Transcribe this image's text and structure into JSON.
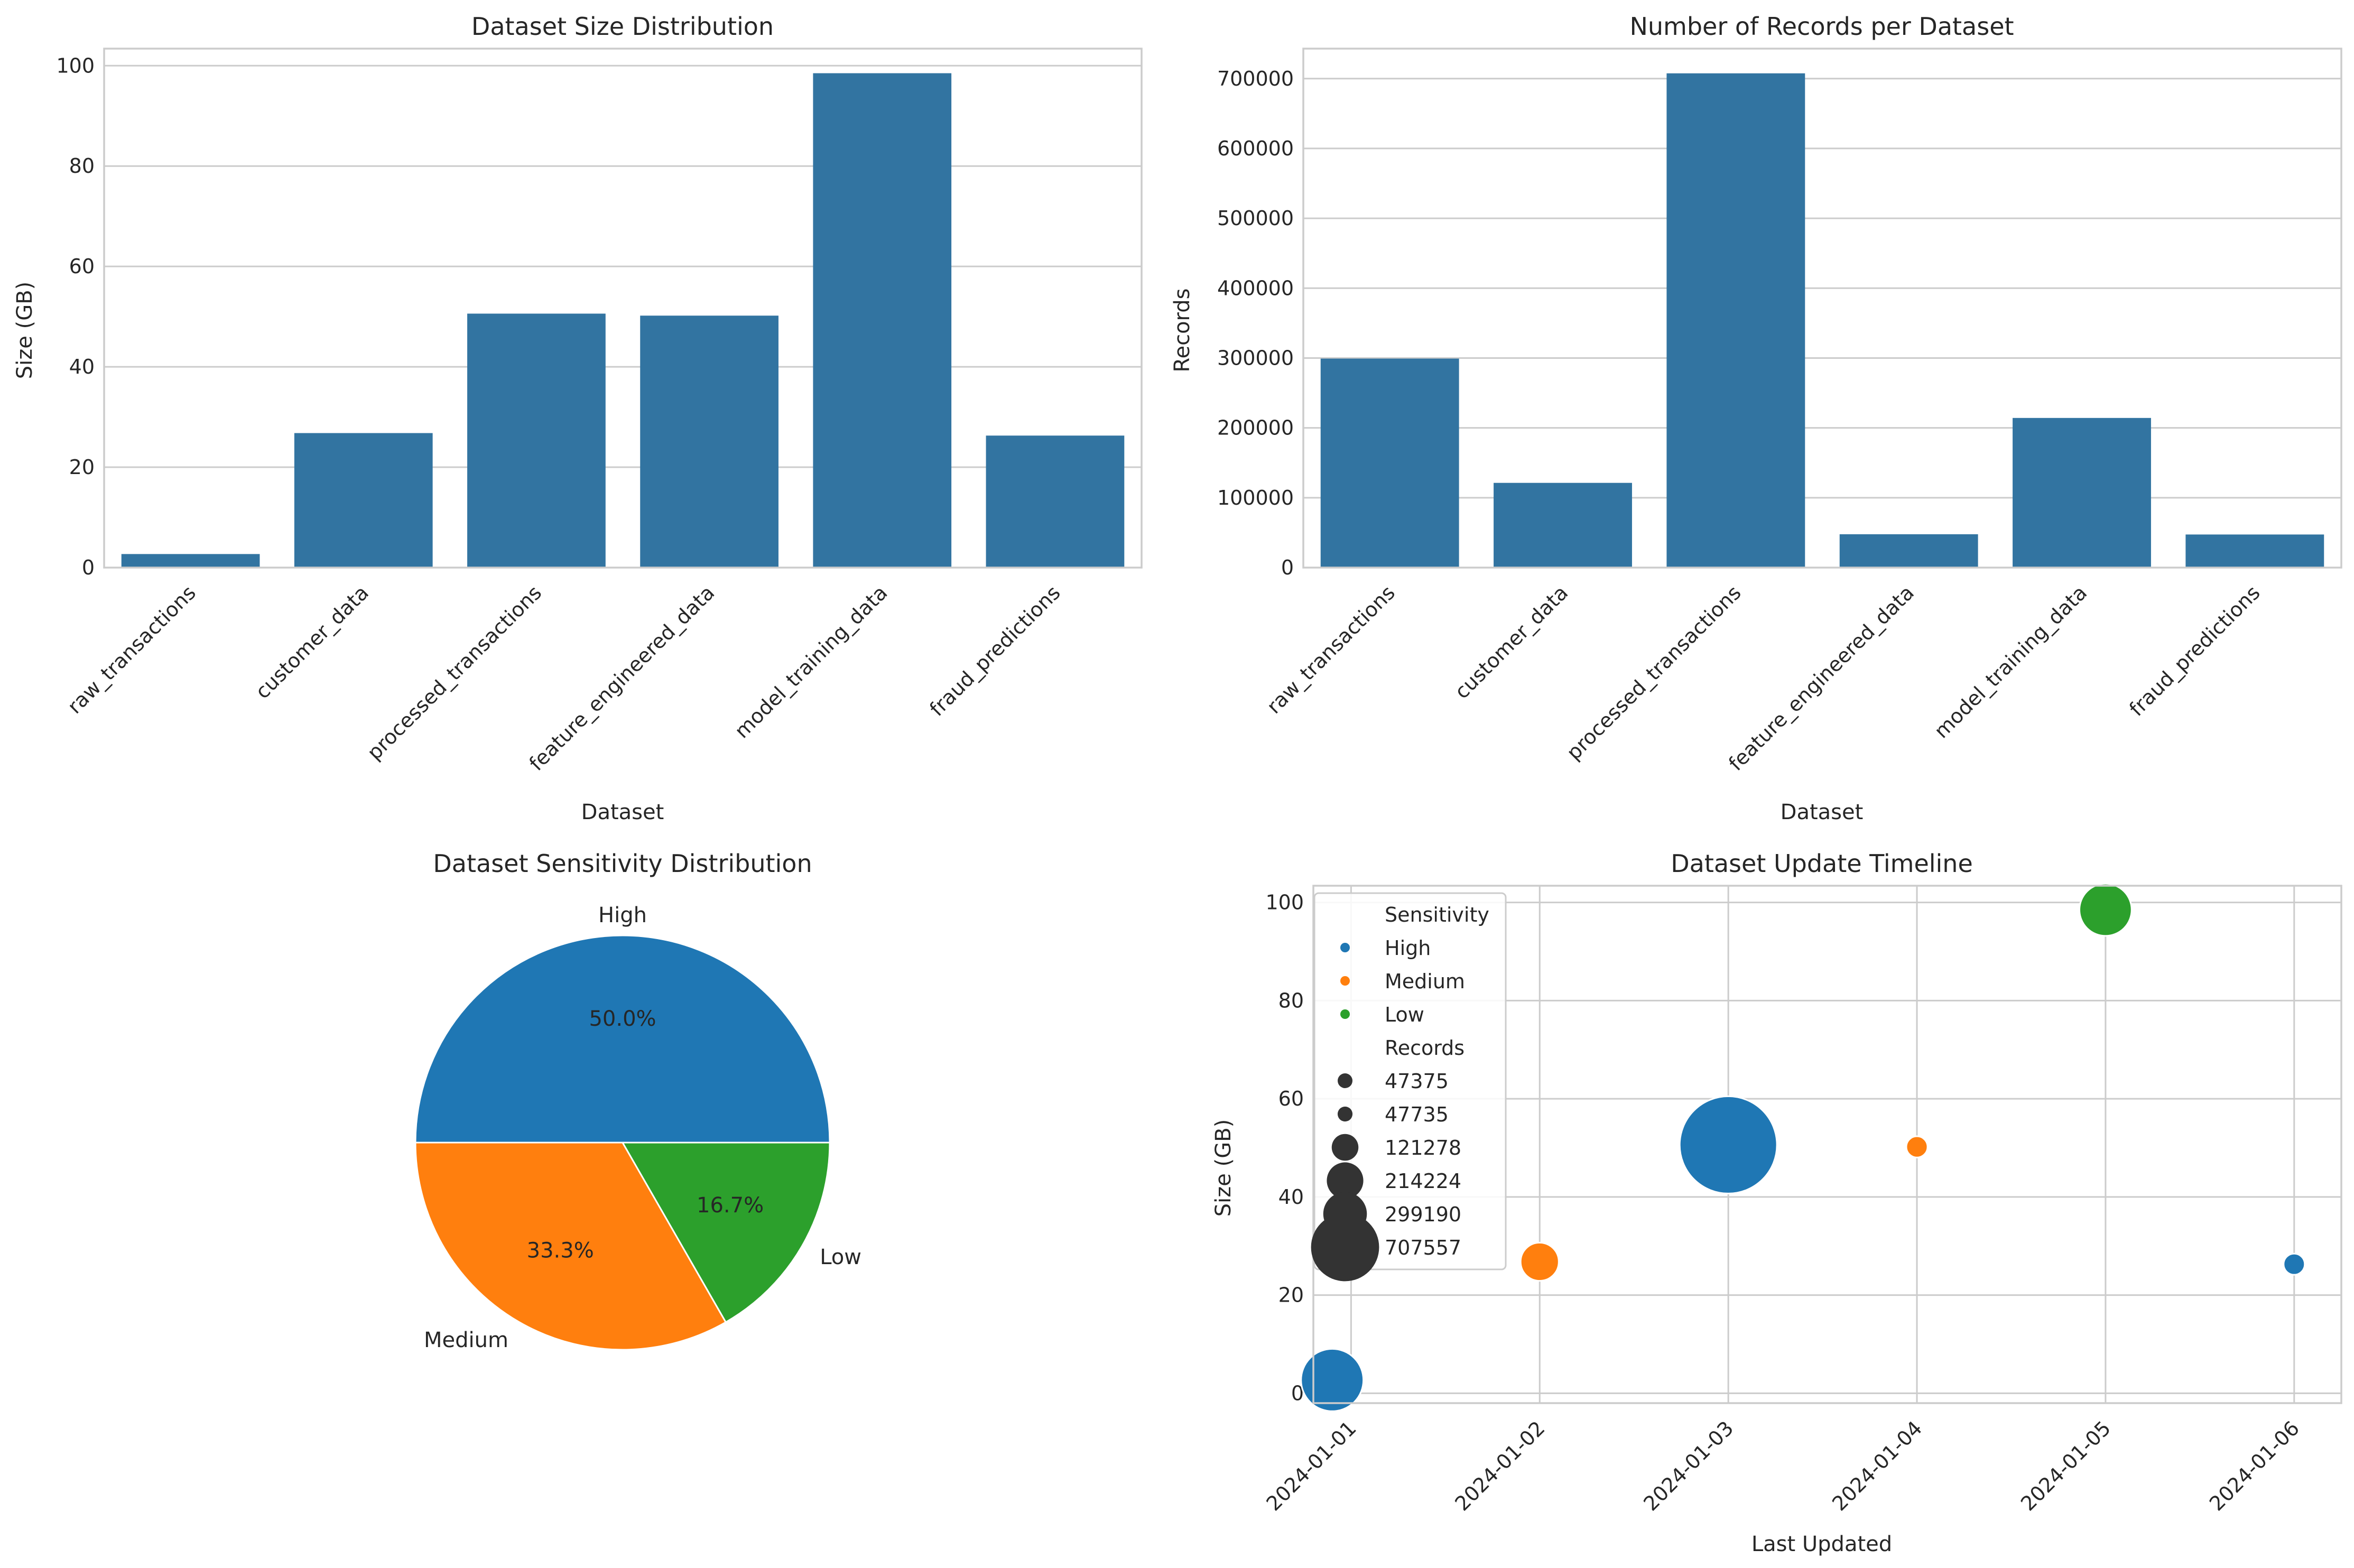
{
  "chart_data": [
    {
      "type": "bar",
      "title": "Dataset Size Distribution",
      "xlabel": "Dataset",
      "ylabel": "Size (GB)",
      "categories": [
        "raw_transactions",
        "customer_data",
        "processed_transactions",
        "feature_engineered_data",
        "model_training_data",
        "fraud_predictions"
      ],
      "values": [
        2.7,
        26.8,
        50.6,
        50.2,
        98.5,
        26.3
      ],
      "ylim": [
        0,
        103.4
      ],
      "yticks": [
        0,
        20,
        40,
        60,
        80,
        100
      ],
      "color": "#3274a1"
    },
    {
      "type": "bar",
      "title": "Number of Records per Dataset",
      "xlabel": "Dataset",
      "ylabel": "Records",
      "categories": [
        "raw_transactions",
        "customer_data",
        "processed_transactions",
        "feature_engineered_data",
        "model_training_data",
        "fraud_predictions"
      ],
      "values": [
        299190,
        121278,
        707557,
        47735,
        214224,
        47375
      ],
      "ylim": [
        0,
        742935
      ],
      "yticks": [
        0,
        100000,
        200000,
        300000,
        400000,
        500000,
        600000,
        700000
      ],
      "color": "#3274a1"
    },
    {
      "type": "pie",
      "title": "Dataset Sensitivity Distribution",
      "labels": [
        "High",
        "Medium",
        "Low"
      ],
      "values": [
        50.0,
        33.3,
        16.7
      ],
      "pct_labels": [
        "50.0%",
        "33.3%",
        "16.7%"
      ],
      "colors": [
        "#1f77b4",
        "#ff7f0e",
        "#2ca02c"
      ]
    },
    {
      "type": "scatter",
      "title": "Dataset Update Timeline",
      "xlabel": "Last Updated",
      "ylabel": "Size (GB)",
      "x": [
        "2024-01-01",
        "2024-01-02",
        "2024-01-03",
        "2024-01-04",
        "2024-01-05",
        "2024-01-06"
      ],
      "x_index": [
        -0.1,
        1.0,
        2.0,
        3.0,
        4.0,
        5.0
      ],
      "xticks": [
        "2024-01-01",
        "2024-01-02",
        "2024-01-03",
        "2024-01-04",
        "2024-01-05",
        "2024-01-06"
      ],
      "xlim": [
        -0.2,
        5.25
      ],
      "y": [
        2.7,
        26.8,
        50.6,
        50.2,
        98.5,
        26.3
      ],
      "ylim": [
        -2,
        103.4
      ],
      "yticks": [
        0,
        20,
        40,
        60,
        80,
        100
      ],
      "sensitivity": [
        "High",
        "Medium",
        "High",
        "Medium",
        "Low",
        "High"
      ],
      "records": [
        299190,
        121278,
        707557,
        47735,
        214224,
        47375
      ],
      "legend": {
        "hue_title": "Sensitivity",
        "hue_entries": [
          {
            "label": "High",
            "color": "#1f77b4"
          },
          {
            "label": "Medium",
            "color": "#ff7f0e"
          },
          {
            "label": "Low",
            "color": "#2ca02c"
          }
        ],
        "size_title": "Records",
        "size_entries": [
          "47375",
          "47735",
          "121278",
          "214224",
          "299190",
          "707557"
        ],
        "size_values": [
          47375,
          47735,
          121278,
          214224,
          299190,
          707557
        ]
      }
    }
  ]
}
